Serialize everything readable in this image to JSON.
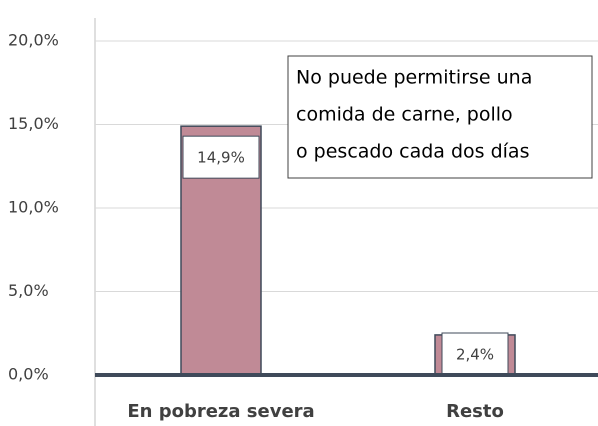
{
  "chart_data": {
    "type": "bar",
    "categories": [
      "En pobreza severa",
      "Resto"
    ],
    "values": [
      14.9,
      2.4
    ],
    "value_labels": [
      "14,9%",
      "2,4%"
    ],
    "color": "#c08a96",
    "ylim": [
      0,
      20
    ],
    "yticks": [
      {
        "value": 0,
        "label": "0,0%"
      },
      {
        "value": 5,
        "label": "5,0%"
      },
      {
        "value": 10,
        "label": "10,0%"
      },
      {
        "value": 15,
        "label": "15,0%"
      },
      {
        "value": 20,
        "label": "20,0%"
      }
    ],
    "grid": true,
    "annotation": [
      "No puede permitirse una",
      "comida de carne, pollo",
      "o pescado cada dos días"
    ]
  }
}
